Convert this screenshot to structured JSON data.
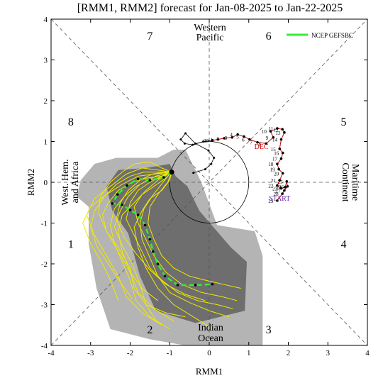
{
  "chart_data": {
    "type": "line",
    "title": "[RMM1, RMM2] forecast for Jan-08-2025 to Jan-22-2025",
    "xlabel": "RMM1",
    "ylabel": "RMM2",
    "xlim": [
      -4,
      4
    ],
    "ylim": [
      -4,
      4
    ],
    "x_ticks": [
      "-4",
      "-3",
      "-2",
      "-1",
      "0",
      "1",
      "2",
      "3",
      "4"
    ],
    "y_ticks": [
      "-4",
      "-3",
      "-2",
      "-1",
      "0",
      "1",
      "2",
      "3",
      "4"
    ],
    "legend": {
      "position": "top-right",
      "label": "NCEP GEFSBC",
      "color": "#33ee33"
    },
    "phase_labels": [
      {
        "text": "1",
        "x": -3.5,
        "y": -1.5
      },
      {
        "text": "2",
        "x": -1.5,
        "y": -3.6
      },
      {
        "text": "3",
        "x": 1.5,
        "y": -3.6
      },
      {
        "text": "4",
        "x": 3.4,
        "y": -1.5
      },
      {
        "text": "5",
        "x": 3.4,
        "y": 1.5
      },
      {
        "text": "6",
        "x": 1.5,
        "y": 3.6
      },
      {
        "text": "7",
        "x": -1.5,
        "y": 3.6
      },
      {
        "text": "8",
        "x": -3.5,
        "y": 1.5
      }
    ],
    "region_labels": {
      "western_pacific": [
        "Western",
        "Pacific"
      ],
      "maritime_continent": [
        "Maritime",
        "Continent"
      ],
      "indian_ocean": [
        "Indian",
        "Ocean"
      ],
      "west_hem": [
        "West. Hem.",
        "and Africa"
      ]
    },
    "observed": {
      "color": "#cc0000",
      "points": [
        [
          0.08,
          1.03
        ],
        [
          0.22,
          1.05
        ],
        [
          0.38,
          1.08
        ],
        [
          0.58,
          1.1
        ],
        [
          0.72,
          1.17
        ],
        [
          0.88,
          1.12
        ],
        [
          1.02,
          1.05
        ],
        [
          1.22,
          0.98
        ],
        [
          1.44,
          0.95
        ],
        [
          1.62,
          1.1
        ],
        [
          1.55,
          1.25
        ],
        [
          1.72,
          1.32
        ],
        [
          1.85,
          1.3
        ],
        [
          1.9,
          1.22
        ],
        [
          1.82,
          1.05
        ],
        [
          1.78,
          0.82
        ],
        [
          1.86,
          0.72
        ],
        [
          1.82,
          0.58
        ],
        [
          1.72,
          0.45
        ],
        [
          1.76,
          0.32
        ],
        [
          1.86,
          0.22
        ],
        [
          1.78,
          0.05
        ],
        [
          1.72,
          -0.08
        ],
        [
          1.82,
          -0.15
        ],
        [
          1.92,
          -0.12
        ],
        [
          1.96,
          0.02
        ],
        [
          1.98,
          -0.1
        ],
        [
          1.9,
          -0.2
        ],
        [
          1.85,
          -0.28
        ],
        [
          1.72,
          -0.45
        ]
      ],
      "day_labels": [
        "30",
        "1",
        "2",
        "3",
        "4",
        "5",
        "6",
        "7",
        "8",
        "9",
        "10",
        "11",
        "12",
        "13",
        "14",
        "15",
        "16",
        "17",
        "18",
        "19",
        "20",
        "21",
        "22",
        "23",
        "24",
        "25",
        "26",
        "27",
        "28",
        "29"
      ],
      "marker_labels": {
        "dec": "DEC",
        "start": "START"
      }
    },
    "observed_prior": {
      "color": "#cc0000",
      "points": [
        [
          -0.4,
          0.23
        ],
        [
          -0.1,
          0.32
        ],
        [
          0.05,
          0.45
        ],
        [
          0.12,
          0.6
        ],
        [
          -0.02,
          0.78
        ],
        [
          -0.35,
          0.95
        ],
        [
          -0.6,
          1.2
        ],
        [
          -0.72,
          1.05
        ],
        [
          -0.62,
          0.95
        ],
        [
          -0.42,
          0.92
        ],
        [
          -0.15,
          1.0
        ],
        [
          0.08,
          1.03
        ]
      ]
    },
    "ensemble_mean": {
      "name": "NCEP GEFSBC",
      "color": "#33ee33",
      "points": [
        [
          -0.95,
          0.25
        ],
        [
          -1.15,
          0.12
        ],
        [
          -1.5,
          0.05
        ],
        [
          -1.8,
          0.08
        ],
        [
          -2.08,
          -0.08
        ],
        [
          -2.32,
          -0.3
        ],
        [
          -2.45,
          -0.52
        ],
        [
          -2.2,
          -0.55
        ],
        [
          -2.0,
          -0.68
        ],
        [
          -1.8,
          -0.8
        ],
        [
          -1.62,
          -1.05
        ],
        [
          -1.5,
          -1.4
        ],
        [
          -1.42,
          -1.7
        ],
        [
          -1.3,
          -2.0
        ],
        [
          -1.12,
          -2.3
        ],
        [
          -0.8,
          -2.52
        ],
        [
          -0.35,
          -2.52
        ],
        [
          0.08,
          -2.5
        ]
      ]
    },
    "members": [
      [
        [
          -0.95,
          0.25
        ],
        [
          -1.2,
          0.15
        ],
        [
          -1.6,
          0.1
        ],
        [
          -1.95,
          0.0
        ],
        [
          -2.3,
          -0.2
        ],
        [
          -2.55,
          -0.5
        ],
        [
          -2.7,
          -0.8
        ],
        [
          -2.6,
          -1.2
        ],
        [
          -2.3,
          -1.6
        ],
        [
          -2.0,
          -2.1
        ],
        [
          -1.9,
          -2.6
        ],
        [
          -1.6,
          -3.0
        ],
        [
          -1.1,
          -3.2
        ],
        [
          -0.6,
          -3.3
        ]
      ],
      [
        [
          -0.95,
          0.25
        ],
        [
          -1.1,
          0.1
        ],
        [
          -1.4,
          -0.1
        ],
        [
          -1.7,
          -0.3
        ],
        [
          -1.9,
          -0.6
        ],
        [
          -1.8,
          -1.0
        ],
        [
          -1.6,
          -1.4
        ],
        [
          -1.4,
          -1.8
        ],
        [
          -1.1,
          -2.2
        ],
        [
          -0.7,
          -2.5
        ],
        [
          -0.2,
          -2.7
        ],
        [
          0.3,
          -2.8
        ],
        [
          0.7,
          -2.9
        ]
      ],
      [
        [
          -0.95,
          0.25
        ],
        [
          -1.3,
          0.3
        ],
        [
          -1.7,
          0.35
        ],
        [
          -2.1,
          0.2
        ],
        [
          -2.5,
          -0.1
        ],
        [
          -2.9,
          -0.4
        ],
        [
          -3.1,
          -0.8
        ],
        [
          -2.9,
          -1.3
        ],
        [
          -2.6,
          -1.8
        ],
        [
          -2.3,
          -2.3
        ],
        [
          -2.1,
          -2.8
        ],
        [
          -1.7,
          -3.2
        ],
        [
          -1.2,
          -3.5
        ]
      ],
      [
        [
          -0.95,
          0.25
        ],
        [
          -1.0,
          0.05
        ],
        [
          -1.2,
          -0.2
        ],
        [
          -1.5,
          -0.4
        ],
        [
          -1.7,
          -0.7
        ],
        [
          -1.9,
          -1.1
        ],
        [
          -1.8,
          -1.6
        ],
        [
          -1.6,
          -2.1
        ],
        [
          -1.3,
          -2.6
        ],
        [
          -0.9,
          -3.0
        ],
        [
          -0.4,
          -3.3
        ],
        [
          0.1,
          -3.6
        ]
      ],
      [
        [
          -0.95,
          0.25
        ],
        [
          -1.4,
          0.2
        ],
        [
          -1.8,
          0.15
        ],
        [
          -2.2,
          -0.05
        ],
        [
          -2.6,
          -0.3
        ],
        [
          -3.0,
          -0.6
        ],
        [
          -3.2,
          -1.0
        ],
        [
          -3.0,
          -1.5
        ],
        [
          -2.7,
          -2.0
        ],
        [
          -2.5,
          -2.4
        ],
        [
          -2.3,
          -2.9
        ]
      ],
      [
        [
          -0.95,
          0.25
        ],
        [
          -1.1,
          0.2
        ],
        [
          -1.5,
          0.0
        ],
        [
          -1.8,
          -0.2
        ],
        [
          -2.0,
          -0.5
        ],
        [
          -2.1,
          -0.9
        ],
        [
          -1.9,
          -1.3
        ],
        [
          -1.7,
          -1.7
        ],
        [
          -1.5,
          -2.1
        ],
        [
          -1.2,
          -2.4
        ],
        [
          -0.8,
          -2.7
        ],
        [
          -0.3,
          -2.9
        ],
        [
          0.2,
          -3.0
        ],
        [
          0.6,
          -3.1
        ]
      ],
      [
        [
          -0.95,
          0.25
        ],
        [
          -1.3,
          0.05
        ],
        [
          -1.6,
          -0.2
        ],
        [
          -1.9,
          -0.5
        ],
        [
          -2.2,
          -0.8
        ],
        [
          -2.3,
          -1.2
        ],
        [
          -2.2,
          -1.7
        ],
        [
          -2.0,
          -2.2
        ],
        [
          -1.8,
          -2.7
        ],
        [
          -1.4,
          -3.1
        ],
        [
          -0.9,
          -3.4
        ]
      ],
      [
        [
          -0.95,
          0.25
        ],
        [
          -1.2,
          0.35
        ],
        [
          -1.5,
          0.5
        ],
        [
          -1.9,
          0.45
        ],
        [
          -2.2,
          0.25
        ],
        [
          -2.5,
          0.0
        ],
        [
          -2.75,
          -0.35
        ],
        [
          -2.8,
          -0.75
        ],
        [
          -2.6,
          -1.2
        ],
        [
          -2.3,
          -1.7
        ],
        [
          -2.0,
          -2.2
        ],
        [
          -1.7,
          -2.6
        ],
        [
          -1.3,
          -2.9
        ]
      ],
      [
        [
          -0.95,
          0.25
        ],
        [
          -1.05,
          0.0
        ],
        [
          -1.3,
          -0.3
        ],
        [
          -1.5,
          -0.6
        ],
        [
          -1.55,
          -1.0
        ],
        [
          -1.4,
          -1.4
        ],
        [
          -1.2,
          -1.8
        ],
        [
          -0.9,
          -2.1
        ],
        [
          -0.5,
          -2.3
        ],
        [
          -0.1,
          -2.4
        ],
        [
          0.35,
          -2.5
        ],
        [
          0.8,
          -2.6
        ]
      ],
      [
        [
          -0.95,
          0.25
        ],
        [
          -1.25,
          0.1
        ],
        [
          -1.55,
          0.05
        ],
        [
          -1.85,
          -0.1
        ],
        [
          -2.15,
          -0.35
        ],
        [
          -2.4,
          -0.65
        ],
        [
          -2.5,
          -1.05
        ],
        [
          -2.4,
          -1.5
        ],
        [
          -2.2,
          -1.95
        ],
        [
          -2.0,
          -2.4
        ],
        [
          -1.85,
          -2.9
        ],
        [
          -1.5,
          -3.3
        ],
        [
          -1.0,
          -3.6
        ]
      ],
      [
        [
          -0.95,
          0.25
        ],
        [
          -1.15,
          0.25
        ],
        [
          -1.45,
          0.2
        ],
        [
          -1.75,
          0.05
        ],
        [
          -2.05,
          -0.2
        ],
        [
          -2.25,
          -0.5
        ],
        [
          -2.35,
          -0.9
        ],
        [
          -2.15,
          -1.35
        ],
        [
          -1.85,
          -1.75
        ],
        [
          -1.5,
          -2.15
        ],
        [
          -1.1,
          -2.5
        ],
        [
          -0.6,
          -2.75
        ],
        [
          -0.1,
          -2.9
        ]
      ],
      [
        [
          -0.95,
          0.25
        ],
        [
          -1.35,
          0.15
        ],
        [
          -1.75,
          -0.05
        ],
        [
          -2.05,
          -0.35
        ],
        [
          -2.25,
          -0.7
        ],
        [
          -2.4,
          -1.1
        ],
        [
          -2.2,
          -1.55
        ],
        [
          -1.95,
          -2.0
        ],
        [
          -1.75,
          -2.5
        ],
        [
          -1.6,
          -3.0
        ],
        [
          -1.3,
          -3.45
        ]
      ],
      [
        [
          -0.95,
          0.25
        ],
        [
          -1.05,
          0.15
        ],
        [
          -1.25,
          -0.1
        ],
        [
          -1.45,
          -0.35
        ],
        [
          -1.65,
          -0.65
        ],
        [
          -1.75,
          -1.0
        ],
        [
          -1.7,
          -1.4
        ],
        [
          -1.5,
          -1.85
        ],
        [
          -1.3,
          -2.3
        ],
        [
          -1.0,
          -2.7
        ],
        [
          -0.5,
          -2.95
        ],
        [
          0.0,
          -3.15
        ],
        [
          0.5,
          -3.3
        ]
      ],
      [
        [
          -0.95,
          0.25
        ],
        [
          -1.3,
          0.25
        ],
        [
          -1.65,
          0.25
        ],
        [
          -2.0,
          0.15
        ],
        [
          -2.35,
          -0.05
        ],
        [
          -2.65,
          -0.35
        ],
        [
          -2.9,
          -0.7
        ],
        [
          -3.0,
          -1.1
        ],
        [
          -2.85,
          -1.55
        ],
        [
          -2.55,
          -2.0
        ],
        [
          -2.25,
          -2.45
        ],
        [
          -1.95,
          -2.85
        ]
      ]
    ],
    "outer_band": [
      [
        -3.25,
        0.05
      ],
      [
        -2.9,
        0.45
      ],
      [
        -2.35,
        0.6
      ],
      [
        -1.3,
        0.6
      ],
      [
        -0.9,
        0.8
      ],
      [
        -0.6,
        0.8
      ],
      [
        -0.2,
        0.0
      ],
      [
        0.2,
        -1.05
      ],
      [
        1.15,
        -1.2
      ],
      [
        1.35,
        -1.8
      ],
      [
        1.35,
        -4.0
      ],
      [
        -0.6,
        -4.0
      ],
      [
        -1.5,
        -3.85
      ],
      [
        -2.5,
        -3.6
      ],
      [
        -2.85,
        -2.6
      ],
      [
        -3.05,
        -1.5
      ],
      [
        -3.05,
        -0.6
      ],
      [
        -3.35,
        -0.35
      ]
    ],
    "inner_band": [
      [
        -2.6,
        -0.1
      ],
      [
        -2.3,
        0.3
      ],
      [
        -1.6,
        0.35
      ],
      [
        -1.0,
        0.45
      ],
      [
        -0.85,
        0.15
      ],
      [
        -0.55,
        -0.1
      ],
      [
        -0.25,
        -0.7
      ],
      [
        0.55,
        -1.6
      ],
      [
        0.95,
        -1.95
      ],
      [
        0.9,
        -3.15
      ],
      [
        -0.35,
        -3.45
      ],
      [
        -1.35,
        -3.15
      ],
      [
        -1.75,
        -2.3
      ],
      [
        -2.05,
        -1.25
      ],
      [
        -2.45,
        -0.7
      ]
    ]
  }
}
